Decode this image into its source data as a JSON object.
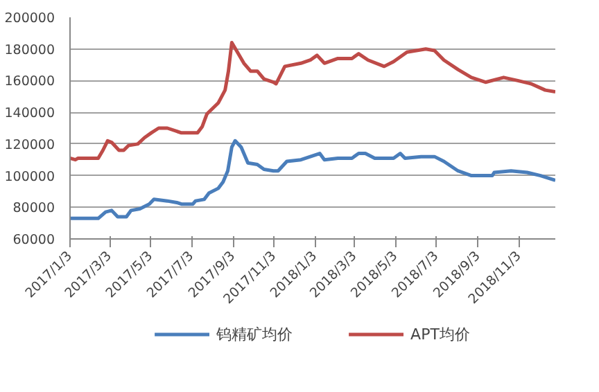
{
  "chart_data": {
    "type": "line",
    "ylim": [
      60000,
      200000
    ],
    "yticks": [
      60000,
      80000,
      100000,
      120000,
      140000,
      160000,
      180000,
      200000
    ],
    "xlim": [
      "2017-01-03",
      "2018-12-27"
    ],
    "xticks": [
      {
        "value": "2017-01-03",
        "label": "2017/1/3"
      },
      {
        "value": "2017-03-03",
        "label": "2017/3/3"
      },
      {
        "value": "2017-05-03",
        "label": "2017/5/3"
      },
      {
        "value": "2017-07-03",
        "label": "2017/7/3"
      },
      {
        "value": "2017-09-03",
        "label": "2017/9/3"
      },
      {
        "value": "2017-11-03",
        "label": "2017/11/3"
      },
      {
        "value": "2018-01-03",
        "label": "2018/1/3"
      },
      {
        "value": "2018-03-03",
        "label": "2018/3/3"
      },
      {
        "value": "2018-05-03",
        "label": "2018/5/3"
      },
      {
        "value": "2018-07-03",
        "label": "2018/7/3"
      },
      {
        "value": "2018-09-03",
        "label": "2018/9/3"
      },
      {
        "value": "2018-11-03",
        "label": "2018/11/3"
      }
    ],
    "grid": "y",
    "legend": "bottom",
    "marker": "none",
    "line_style": "solid",
    "series": [
      {
        "name": "钨精矿均价",
        "color": "#4a7ebb",
        "x": [
          "2017-01-03",
          "2017-02-14",
          "2017-02-25",
          "2017-03-06",
          "2017-03-15",
          "2017-03-28",
          "2017-04-04",
          "2017-04-17",
          "2017-05-01",
          "2017-05-08",
          "2017-05-28",
          "2017-06-11",
          "2017-06-18",
          "2017-07-05",
          "2017-07-09",
          "2017-07-22",
          "2017-07-29",
          "2017-08-12",
          "2017-08-19",
          "2017-08-26",
          "2017-09-01",
          "2017-09-06",
          "2017-09-15",
          "2017-09-25",
          "2017-10-09",
          "2017-10-19",
          "2017-11-02",
          "2017-11-09",
          "2017-11-22",
          "2017-12-13",
          "2018-01-03",
          "2018-01-10",
          "2018-01-17",
          "2018-02-06",
          "2018-02-27",
          "2018-03-09",
          "2018-03-19",
          "2018-04-02",
          "2018-04-30",
          "2018-05-10",
          "2018-05-17",
          "2018-06-10",
          "2018-06-30",
          "2018-07-14",
          "2018-08-04",
          "2018-08-24",
          "2018-09-24",
          "2018-09-27",
          "2018-10-22",
          "2018-11-15",
          "2018-12-05",
          "2018-12-27"
        ],
        "values": [
          73000,
          73000,
          77000,
          78000,
          74000,
          74000,
          78000,
          79000,
          82000,
          85000,
          84000,
          83000,
          82000,
          82000,
          84000,
          85000,
          89000,
          92000,
          96000,
          103000,
          118000,
          122000,
          118000,
          108000,
          107000,
          104000,
          103000,
          103000,
          109000,
          110000,
          113000,
          114000,
          110000,
          111000,
          111000,
          114000,
          114000,
          111000,
          111000,
          114000,
          111000,
          112000,
          112000,
          109000,
          103000,
          100000,
          100000,
          102000,
          103000,
          102000,
          100000,
          97000
        ]
      },
      {
        "name": "APT均价",
        "color": "#be4b48",
        "x": [
          "2017-01-03",
          "2017-01-11",
          "2017-01-15",
          "2017-02-14",
          "2017-02-21",
          "2017-02-28",
          "2017-03-06",
          "2017-03-17",
          "2017-03-24",
          "2017-03-31",
          "2017-04-14",
          "2017-04-24",
          "2017-05-04",
          "2017-05-15",
          "2017-05-28",
          "2017-06-18",
          "2017-07-12",
          "2017-07-19",
          "2017-07-26",
          "2017-08-12",
          "2017-08-22",
          "2017-08-27",
          "2017-09-01",
          "2017-09-08",
          "2017-09-19",
          "2017-09-29",
          "2017-10-09",
          "2017-10-19",
          "2017-11-02",
          "2017-11-06",
          "2017-11-19",
          "2017-12-13",
          "2017-12-27",
          "2018-01-06",
          "2018-01-17",
          "2018-02-06",
          "2018-02-27",
          "2018-03-09",
          "2018-03-23",
          "2018-04-16",
          "2018-04-30",
          "2018-05-20",
          "2018-06-17",
          "2018-06-30",
          "2018-07-14",
          "2018-08-04",
          "2018-08-24",
          "2018-09-14",
          "2018-10-11",
          "2018-11-01",
          "2018-11-21",
          "2018-12-12",
          "2018-12-27"
        ],
        "values": [
          111000,
          110000,
          111000,
          111000,
          116000,
          122000,
          121000,
          116000,
          116000,
          119000,
          120000,
          124000,
          127000,
          130000,
          130000,
          127000,
          127000,
          131000,
          139000,
          146000,
          154000,
          166000,
          184000,
          179000,
          171000,
          166000,
          166000,
          161000,
          159000,
          158000,
          169000,
          171000,
          173000,
          176000,
          171000,
          174000,
          174000,
          177000,
          173000,
          169000,
          172000,
          178000,
          180000,
          179000,
          173000,
          167000,
          162000,
          159000,
          162000,
          160000,
          158000,
          154000,
          153000
        ]
      }
    ]
  }
}
